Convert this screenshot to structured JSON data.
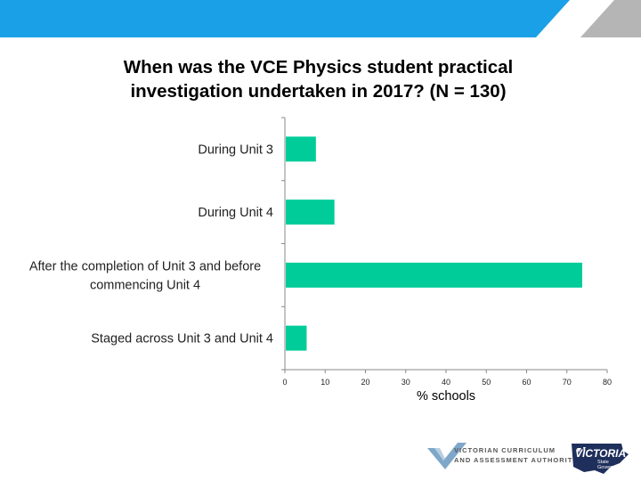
{
  "colors": {
    "banner_blue": "#1aa0e6",
    "banner_grey": "#b5b5b5",
    "bar_fill": "#00cc99",
    "axis": "#888888",
    "vic_navy": "#1f2f5c"
  },
  "chart_data": {
    "type": "bar",
    "orientation": "horizontal",
    "title": "When was the VCE Physics student practical\ninvestigation undertaken in 2017?   (N = 130)",
    "categories": [
      "During Unit 3",
      "During Unit 4",
      "After the completion of Unit 3 and before\ncommencing Unit 4",
      "Staged across Unit 3 and Unit 4"
    ],
    "values": [
      7.7,
      12.3,
      73.8,
      5.4
    ],
    "xlabel": "% schools",
    "ylabel": "",
    "xlim": [
      0,
      80
    ],
    "xticks": [
      0,
      10,
      20,
      30,
      40,
      50,
      60,
      70,
      80
    ],
    "grid": false,
    "legend": "none"
  },
  "footer": {
    "vcaa_text": "VICTORIAN CURRICULUM\nAND ASSESSMENT AUTHORITY",
    "vic_word": "VICTORIA",
    "vic_sub": "State\nGovernment",
    "vcaa_icon": "vcaa-tick-icon",
    "vic_icon": "victoria-map-icon"
  }
}
